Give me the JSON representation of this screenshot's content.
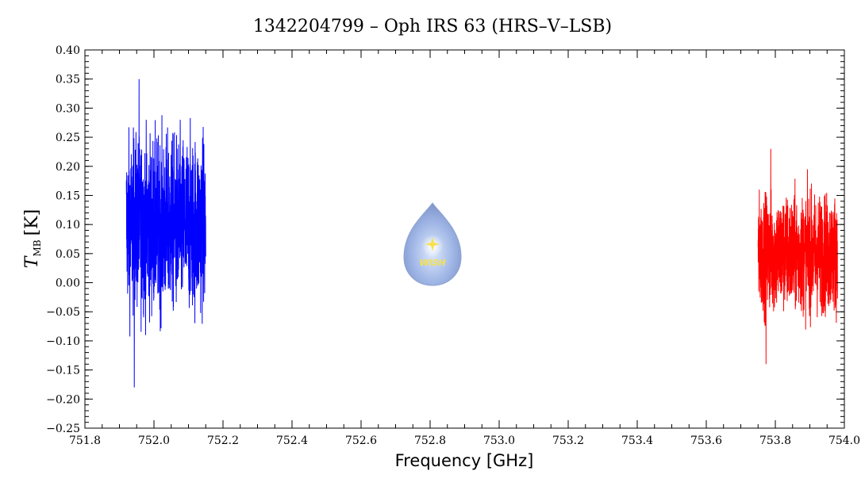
{
  "chart_data": {
    "type": "line",
    "title": "1342204799 – Oph IRS 63 (HRS–V–LSB)",
    "xlabel": "Frequency [GHz]",
    "ylabel_main": "T",
    "ylabel_sub": "MB",
    "ylabel_unit": "[K]",
    "xlim": [
      751.8,
      754.0
    ],
    "ylim": [
      -0.25,
      0.4
    ],
    "grid": false,
    "x_ticks": [
      "751.8",
      "752.0",
      "752.2",
      "752.4",
      "752.6",
      "752.8",
      "753.0",
      "753.2",
      "753.4",
      "753.6",
      "753.8",
      "754.0"
    ],
    "y_ticks": [
      "0.40",
      "0.35",
      "0.30",
      "0.25",
      "0.20",
      "0.15",
      "0.10",
      "0.05",
      "0.00",
      "−0.05",
      "−0.10",
      "−0.15",
      "−0.20",
      "−0.25"
    ],
    "series": [
      {
        "color": "#0000ff",
        "x_range": [
          751.92,
          752.15
        ],
        "mean": 0.1,
        "min": -0.18,
        "max": 0.35
      },
      {
        "color": "#ff0000",
        "x_range": [
          753.75,
          753.98
        ],
        "mean": 0.05,
        "min": -0.14,
        "max": 0.23
      }
    ]
  },
  "logo": {
    "text": "WISH"
  }
}
